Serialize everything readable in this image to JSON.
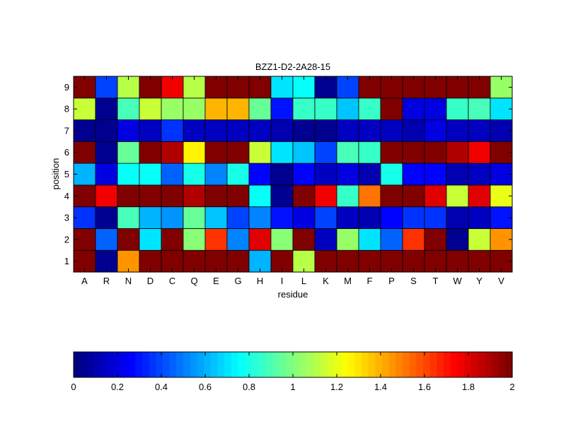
{
  "chart_data": {
    "type": "heatmap",
    "title": "BZZ1-D2-2A28-15",
    "xlabel": "residue",
    "ylabel": "position",
    "x_categories": [
      "A",
      "R",
      "N",
      "D",
      "C",
      "Q",
      "E",
      "G",
      "H",
      "I",
      "L",
      "K",
      "M",
      "F",
      "P",
      "S",
      "T",
      "W",
      "Y",
      "V"
    ],
    "y_categories": [
      "1",
      "2",
      "3",
      "4",
      "5",
      "6",
      "7",
      "8",
      "9"
    ],
    "clim": [
      0,
      2
    ],
    "colormap": "jet",
    "colorbar": {
      "location": "bottom",
      "ticks": [
        0,
        0.2,
        0.4,
        0.6,
        0.8,
        1,
        1.2,
        1.4,
        1.6,
        1.8,
        2
      ],
      "tick_labels": [
        "0",
        "0.2",
        "0.4",
        "0.6",
        "0.8",
        "1",
        "1.2",
        "1.4",
        "1.6",
        "1.8",
        "2"
      ]
    },
    "values": [
      [
        2.0,
        0.05,
        1.45,
        2.0,
        2.0,
        2.0,
        2.0,
        2.0,
        0.6,
        2.0,
        1.1,
        2.0,
        2.0,
        2.0,
        2.0,
        2.0,
        2.0,
        2.0,
        2.0,
        2.0
      ],
      [
        2.0,
        0.45,
        2.0,
        0.7,
        2.0,
        1.0,
        1.65,
        0.5,
        1.8,
        1.0,
        2.0,
        0.15,
        1.05,
        0.7,
        0.45,
        1.65,
        2.0,
        0.05,
        1.15,
        1.45
      ],
      [
        0.35,
        0.05,
        0.9,
        0.6,
        0.55,
        0.95,
        0.65,
        0.4,
        0.5,
        0.3,
        0.2,
        0.4,
        0.15,
        0.1,
        0.25,
        0.35,
        0.35,
        0.1,
        0.15,
        0.3
      ],
      [
        2.0,
        1.75,
        2.0,
        2.0,
        2.0,
        1.9,
        2.0,
        2.0,
        0.75,
        0.05,
        2.0,
        1.75,
        0.85,
        1.5,
        2.0,
        2.0,
        1.8,
        1.15,
        1.8,
        1.2
      ],
      [
        0.6,
        0.2,
        0.75,
        0.75,
        0.45,
        0.8,
        0.5,
        0.8,
        0.25,
        0.05,
        0.25,
        0.15,
        0.2,
        0.1,
        0.8,
        0.25,
        0.25,
        0.1,
        0.15,
        0.2
      ],
      [
        2.0,
        0.05,
        0.95,
        2.0,
        1.9,
        1.25,
        2.0,
        2.0,
        1.15,
        0.7,
        0.65,
        0.4,
        0.9,
        0.85,
        2.0,
        2.0,
        2.0,
        1.9,
        1.75,
        2.0
      ],
      [
        0.05,
        0.05,
        0.2,
        0.15,
        0.35,
        0.15,
        0.15,
        0.15,
        0.15,
        0.1,
        0.05,
        0.05,
        0.15,
        0.15,
        0.15,
        0.1,
        0.2,
        0.15,
        0.15,
        0.1
      ],
      [
        1.15,
        0.05,
        0.9,
        1.15,
        1.05,
        1.05,
        1.4,
        1.4,
        0.95,
        0.3,
        0.85,
        0.85,
        0.65,
        0.85,
        2.0,
        0.2,
        0.2,
        0.85,
        0.9,
        0.7
      ],
      [
        2.0,
        0.4,
        1.1,
        2.0,
        1.75,
        1.1,
        2.0,
        2.0,
        2.0,
        0.7,
        0.75,
        0.05,
        0.4,
        2.0,
        2.0,
        2.0,
        2.0,
        2.0,
        2.0,
        1.05
      ]
    ]
  }
}
